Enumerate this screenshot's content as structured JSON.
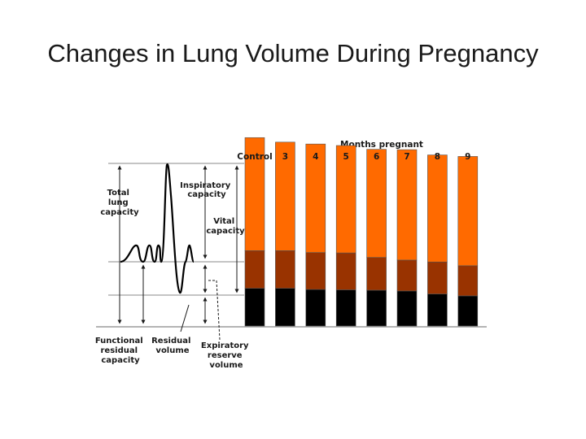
{
  "slide": {
    "title": "Changes in Lung Volume During Pregnancy"
  },
  "colors": {
    "inspiratory_capacity": "#ff6a00",
    "expiratory_reserve_volume": "#993300",
    "residual_volume": "#000000",
    "axis": "#888888",
    "trace": "#000000"
  },
  "diagram_labels": {
    "total_lung_capacity": [
      "Total",
      "lung",
      "capacity"
    ],
    "inspiratory_capacity": [
      "Inspiratory",
      "capacity"
    ],
    "vital_capacity": [
      "Vital",
      "capacity"
    ],
    "functional_residual_capacity": [
      "Functional",
      "residual",
      "capacity"
    ],
    "residual_volume": [
      "Residual",
      "volume"
    ],
    "expiratory_reserve_volume": [
      "Expiratory",
      "reserve",
      "volume"
    ]
  },
  "chart_data": {
    "type": "bar",
    "stacked": true,
    "title": "Months pregnant",
    "xlabel": "Months pregnant",
    "ylabel": "",
    "categories": [
      "Control",
      "3",
      "4",
      "5",
      "6",
      "7",
      "8",
      "9"
    ],
    "series": [
      {
        "name": "Residual volume",
        "values": [
          1.0,
          1.0,
          0.97,
          0.96,
          0.95,
          0.93,
          0.85,
          0.8
        ]
      },
      {
        "name": "Expiratory reserve volume",
        "values": [
          1.0,
          1.0,
          0.98,
          0.98,
          0.87,
          0.82,
          0.85,
          0.8
        ]
      },
      {
        "name": "Inspiratory capacity",
        "values": [
          3.0,
          2.88,
          2.88,
          2.85,
          2.87,
          2.93,
          2.84,
          2.9
        ]
      }
    ],
    "ylim": [
      0,
      5.2
    ],
    "grid": false,
    "legend": "none"
  }
}
